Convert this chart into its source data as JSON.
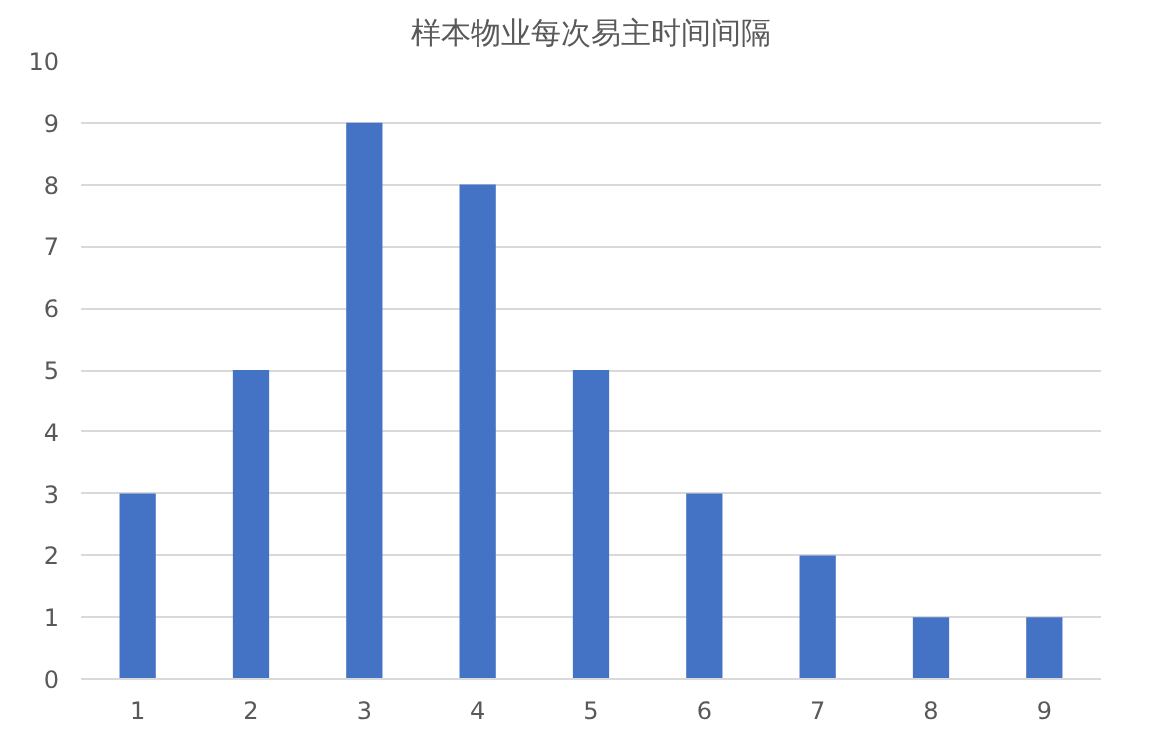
{
  "chart_data": {
    "type": "bar",
    "title": "样本物业每次易主时间间隔",
    "categories": [
      "1",
      "2",
      "3",
      "4",
      "5",
      "6",
      "7",
      "8",
      "9"
    ],
    "values": [
      3,
      5,
      9,
      8,
      5,
      3,
      2,
      1,
      1
    ],
    "color": "#4472c4",
    "ylim": [
      0,
      10
    ],
    "yticks": [
      0,
      1,
      2,
      3,
      4,
      5,
      6,
      7,
      8,
      9,
      10
    ],
    "grid": "y"
  }
}
